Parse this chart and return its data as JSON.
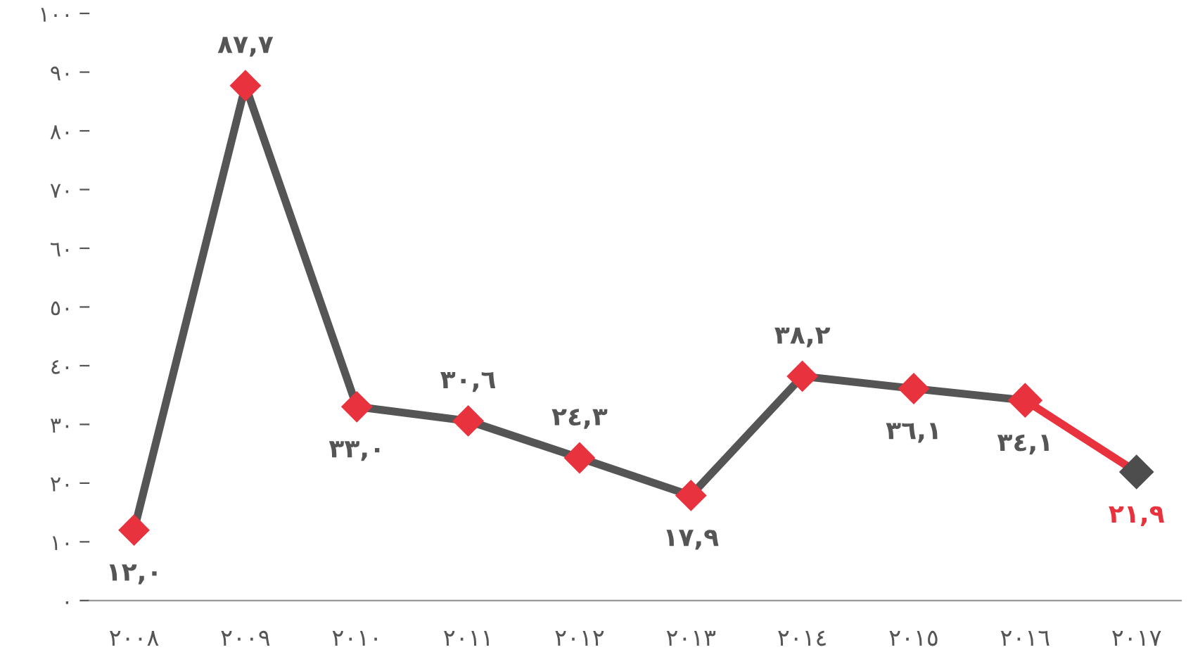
{
  "chart_data": {
    "type": "line",
    "categories": [
      "٢٠٠٨",
      "٢٠٠٩",
      "٢٠١٠",
      "٢٠١١",
      "٢٠١٢",
      "٢٠١٣",
      "٢٠١٤",
      "٢٠١٥",
      "٢٠١٦",
      "٢٠١٧"
    ],
    "series": [
      {
        "color": "#555555",
        "colors": [
          "#e8333f",
          "#e8333f",
          "#e8333f",
          "#e8333f",
          "#e8333f",
          "#e8333f",
          "#e8333f",
          "#e8333f",
          "#e8333f",
          null
        ],
        "values": [
          12.0,
          87.7,
          33.0,
          30.6,
          24.3,
          17.9,
          38.2,
          36.1,
          34.1,
          null
        ],
        "value_labels": [
          "١٢,٠",
          "٨٧,٧",
          "٣٣,٠",
          "٣٠,٦",
          "٢٤,٣",
          "١٧,٩",
          "٣٨,٢",
          "٣٦,١",
          "٣٤,١",
          null
        ]
      },
      {
        "color": "#e8333f",
        "colors": [
          null,
          null,
          null,
          null,
          null,
          null,
          null,
          null,
          "#e8333f",
          "#4d4d4d"
        ],
        "values": [
          null,
          null,
          null,
          null,
          null,
          null,
          null,
          null,
          34.1,
          21.9
        ],
        "value_labels": [
          null,
          null,
          null,
          null,
          null,
          null,
          null,
          null,
          null,
          "٢١,٩"
        ]
      }
    ],
    "marker": "diamond",
    "ylim": [
      0,
      100
    ],
    "yticks": [
      {
        "value": 0,
        "label": "٠"
      },
      {
        "value": 10,
        "label": "١٠"
      },
      {
        "value": 20,
        "label": "٢٠"
      },
      {
        "value": 30,
        "label": "٣٠"
      },
      {
        "value": 40,
        "label": "٤٠"
      },
      {
        "value": 50,
        "label": "٥٠"
      },
      {
        "value": 60,
        "label": "٦٠"
      },
      {
        "value": 70,
        "label": "٧٠"
      },
      {
        "value": 80,
        "label": "٨٠"
      },
      {
        "value": 90,
        "label": "٩٠"
      },
      {
        "value": 100,
        "label": "١٠٠"
      }
    ],
    "grid": false,
    "legend": false
  }
}
